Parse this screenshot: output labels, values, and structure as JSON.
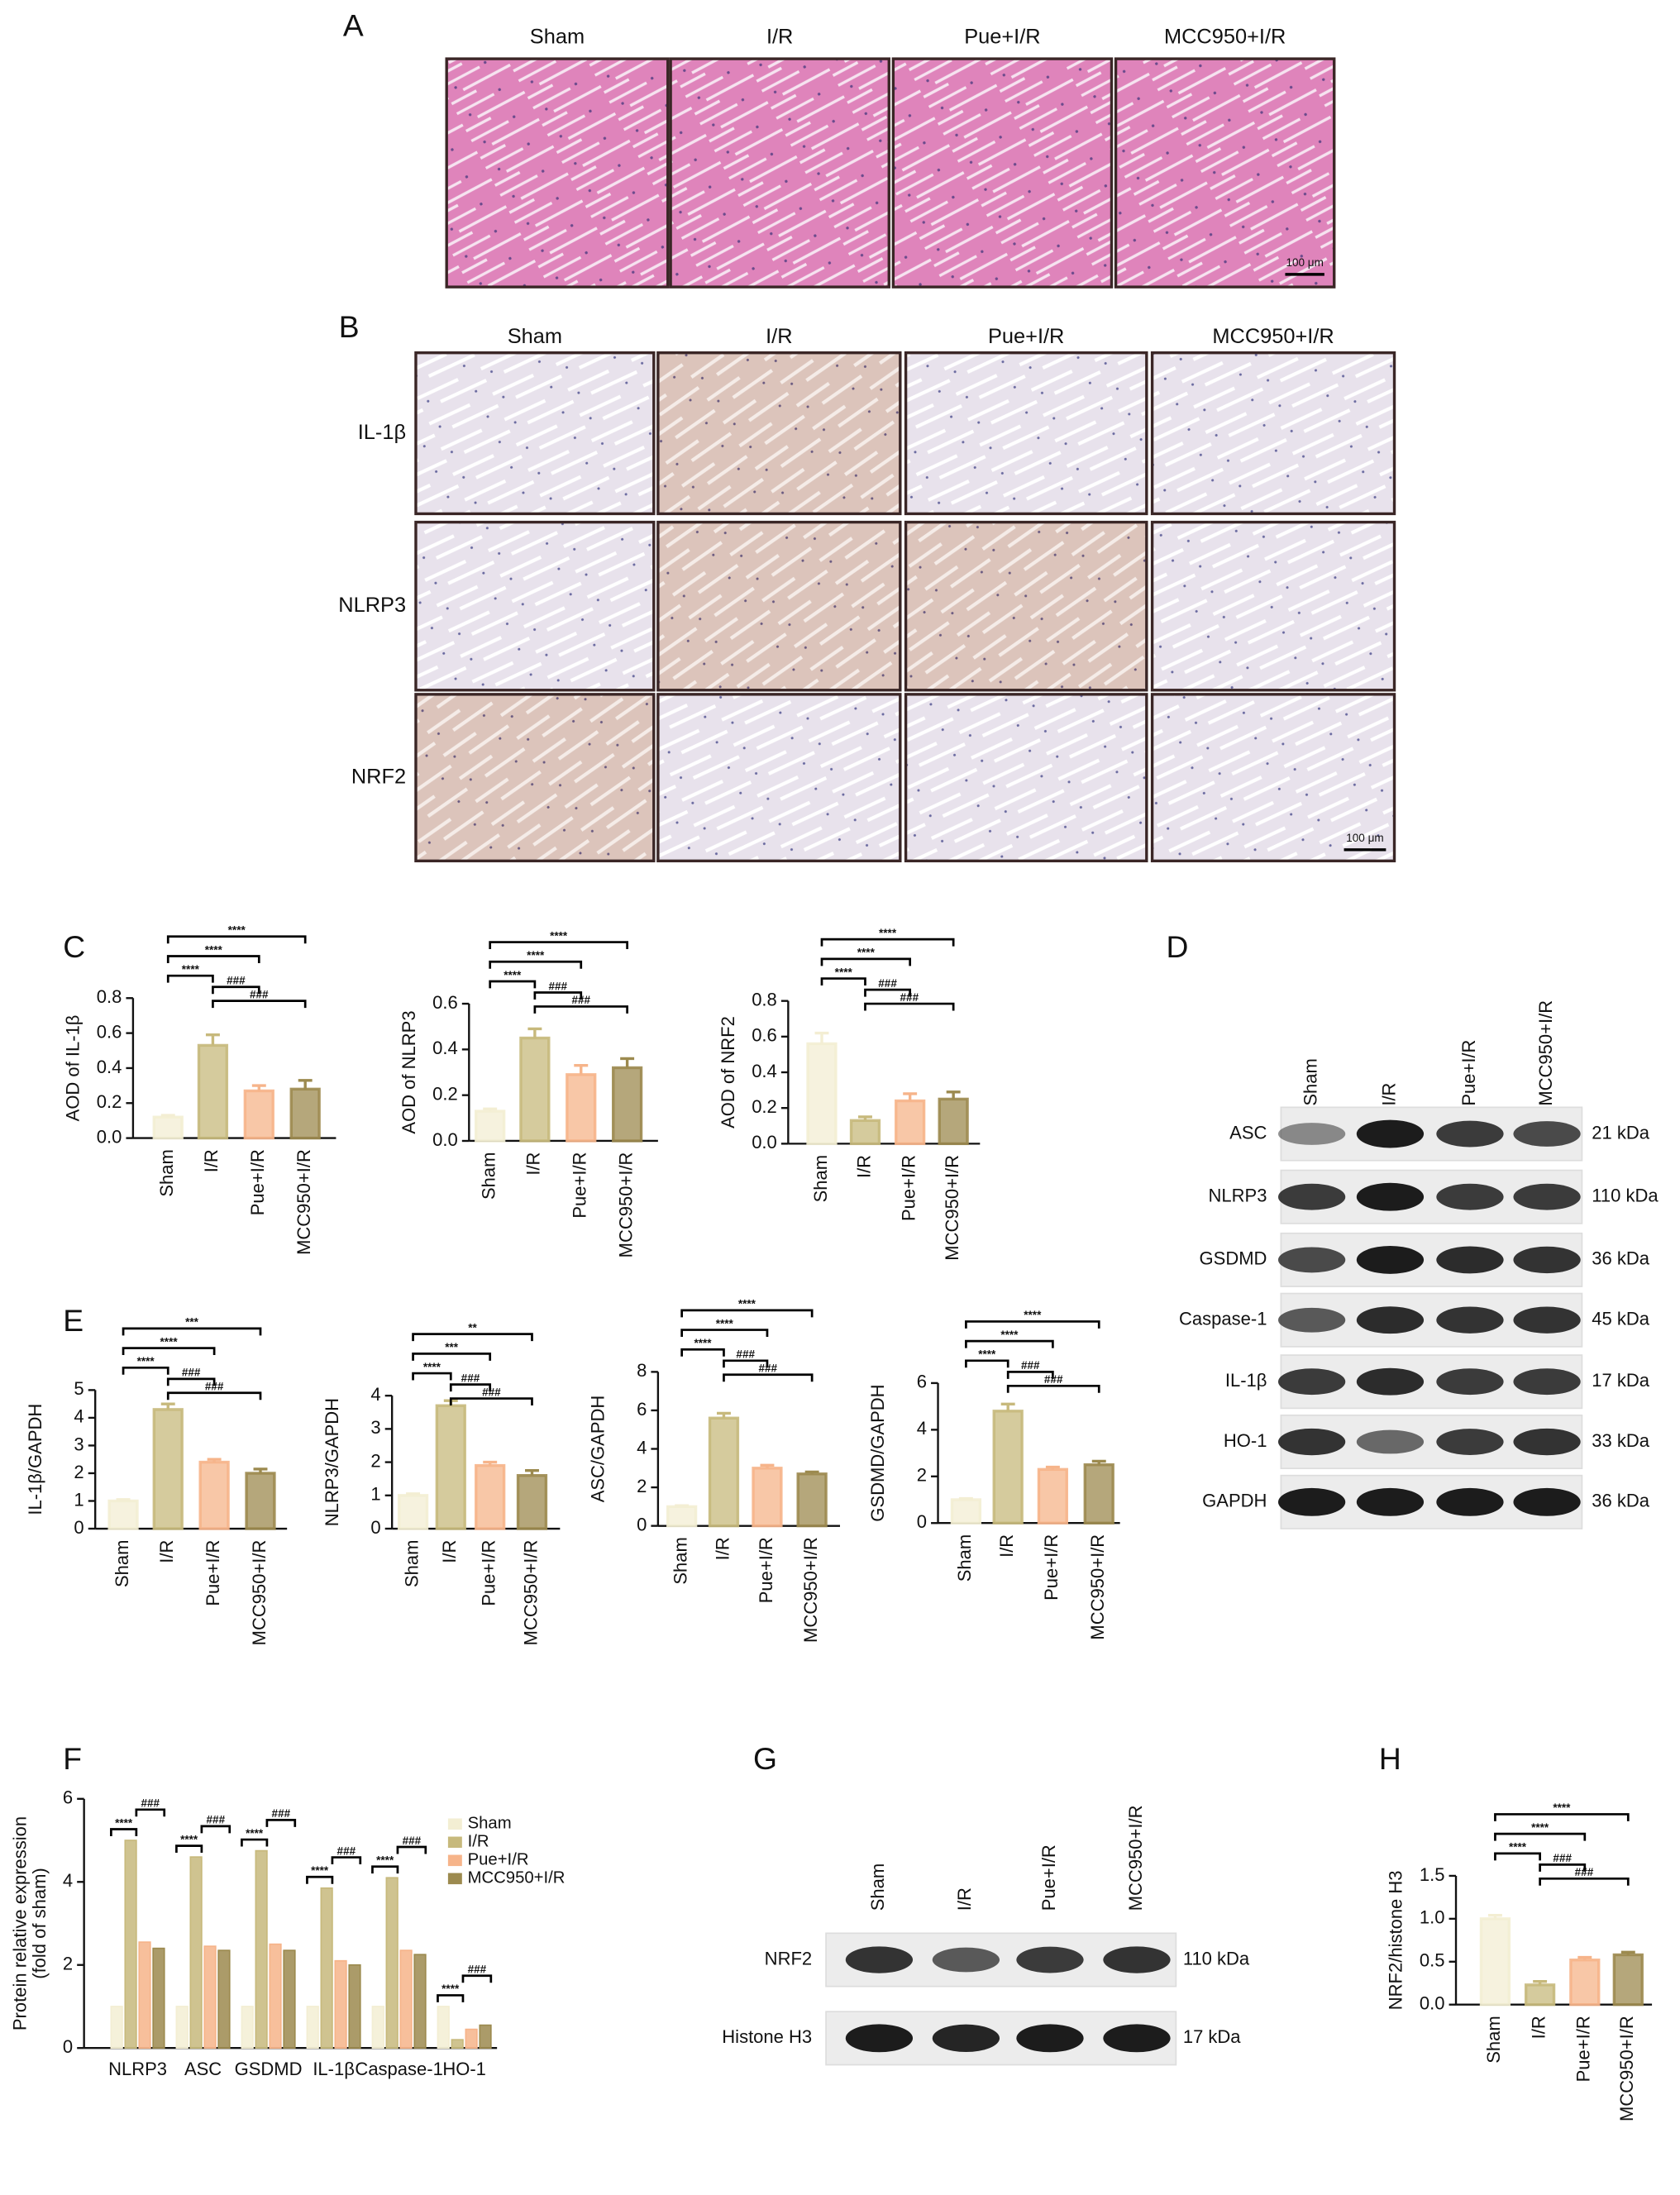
{
  "panel_labels": [
    "A",
    "B",
    "C",
    "D",
    "E",
    "F",
    "G",
    "H"
  ],
  "he_staining": {
    "groups": [
      "Sham",
      "I/R",
      "Pue+I/R",
      "MCC950+I/R"
    ],
    "scale_bar": "100 μm"
  },
  "ihc_staining": {
    "groups": [
      "Sham",
      "I/R",
      "Pue+I/R",
      "MCC950+I/R"
    ],
    "markers": [
      "IL-1β",
      "NLRP3",
      "NRF2"
    ],
    "scale_bar": "100 μm"
  },
  "western_blot_d": {
    "lanes": [
      "Sham",
      "I/R",
      "Pue+I/R",
      "MCC950+I/R"
    ],
    "proteins": [
      "ASC",
      "NLRP3",
      "GSDMD",
      "Caspase-1",
      "IL-1β",
      "HO-1",
      "GAPDH"
    ],
    "sizes": [
      "21 kDa",
      "110 kDa",
      "36 kDa",
      "45 kDa",
      "17 kDa",
      "33 kDa",
      "36 kDa"
    ]
  },
  "western_blot_g": {
    "lanes": [
      "Sham",
      "I/R",
      "Pue+I/R",
      "MCC950+I/R"
    ],
    "proteins": [
      "NRF2",
      "Histone H3"
    ],
    "sizes": [
      "110 kDa",
      "17 kDa"
    ]
  },
  "chart_data": [
    {
      "type": "bar",
      "ylabel": "AOD of IL-1β",
      "categories": [
        "Sham",
        "I/R",
        "Pue+I/R",
        "MCC950+I/R"
      ],
      "values": [
        0.12,
        0.53,
        0.27,
        0.28
      ],
      "errors": [
        0.01,
        0.06,
        0.03,
        0.05
      ],
      "colors": [
        "#f3eed3",
        "#c7b97c",
        "#f6b48a",
        "#9c8a4f"
      ],
      "ylim": [
        0,
        0.8
      ],
      "yticks": [
        {
          "value": 0,
          "label": "0.0"
        },
        {
          "value": 0.2,
          "label": "0.2"
        },
        {
          "value": 0.4,
          "label": "0.4"
        },
        {
          "value": 0.6,
          "label": "0.6"
        },
        {
          "value": 0.8,
          "label": "0.8"
        }
      ],
      "annotations": [
        "****",
        "****",
        "****",
        "###",
        "###"
      ]
    },
    {
      "type": "bar",
      "ylabel": "AOD of NLRP3",
      "categories": [
        "Sham",
        "I/R",
        "Pue+I/R",
        "MCC950+I/R"
      ],
      "values": [
        0.13,
        0.45,
        0.29,
        0.32
      ],
      "errors": [
        0.01,
        0.04,
        0.04,
        0.04
      ],
      "colors": [
        "#f3eed3",
        "#c7b97c",
        "#f6b48a",
        "#9c8a4f"
      ],
      "ylim": [
        0,
        0.6
      ],
      "yticks": [
        {
          "value": 0,
          "label": "0.0"
        },
        {
          "value": 0.2,
          "label": "0.2"
        },
        {
          "value": 0.4,
          "label": "0.4"
        },
        {
          "value": 0.6,
          "label": "0.6"
        }
      ],
      "annotations": [
        "****",
        "****",
        "****",
        "###",
        "###"
      ]
    },
    {
      "type": "bar",
      "ylabel": "AOD of NRF2",
      "categories": [
        "Sham",
        "I/R",
        "Pue+I/R",
        "MCC950+I/R"
      ],
      "values": [
        0.56,
        0.13,
        0.24,
        0.25
      ],
      "errors": [
        0.06,
        0.02,
        0.04,
        0.04
      ],
      "colors": [
        "#f3eed3",
        "#c7b97c",
        "#f6b48a",
        "#9c8a4f"
      ],
      "ylim": [
        0,
        0.8
      ],
      "yticks": [
        {
          "value": 0,
          "label": "0.0"
        },
        {
          "value": 0.2,
          "label": "0.2"
        },
        {
          "value": 0.4,
          "label": "0.4"
        },
        {
          "value": 0.6,
          "label": "0.6"
        },
        {
          "value": 0.8,
          "label": "0.8"
        }
      ],
      "annotations": [
        "****",
        "****",
        "****",
        "###",
        "###"
      ]
    },
    {
      "type": "bar",
      "ylabel": "IL-1β/GAPDH",
      "categories": [
        "Sham",
        "I/R",
        "Pue+I/R",
        "MCC950+I/R"
      ],
      "values": [
        1.0,
        4.3,
        2.4,
        2.0
      ],
      "errors": [
        0.05,
        0.2,
        0.1,
        0.15
      ],
      "colors": [
        "#f3eed3",
        "#c7b97c",
        "#f6b48a",
        "#9c8a4f"
      ],
      "ylim": [
        0,
        5
      ],
      "yticks": [
        0,
        1,
        2,
        3,
        4,
        5
      ],
      "annotations": [
        "****",
        "****",
        "***",
        "###",
        "###"
      ]
    },
    {
      "type": "bar",
      "ylabel": "NLRP3/GAPDH",
      "categories": [
        "Sham",
        "I/R",
        "Pue+I/R",
        "MCC950+I/R"
      ],
      "values": [
        1.0,
        3.7,
        1.9,
        1.6
      ],
      "errors": [
        0.05,
        0.15,
        0.1,
        0.15
      ],
      "colors": [
        "#f3eed3",
        "#c7b97c",
        "#f6b48a",
        "#9c8a4f"
      ],
      "ylim": [
        0,
        4
      ],
      "yticks": [
        0,
        1,
        2,
        3,
        4
      ],
      "annotations": [
        "****",
        "***",
        "**",
        "###",
        "###"
      ]
    },
    {
      "type": "bar",
      "ylabel": "ASC/GAPDH",
      "categories": [
        "Sham",
        "I/R",
        "Pue+I/R",
        "MCC950+I/R"
      ],
      "values": [
        1.0,
        5.6,
        3.0,
        2.7
      ],
      "errors": [
        0.05,
        0.25,
        0.15,
        0.1
      ],
      "colors": [
        "#f3eed3",
        "#c7b97c",
        "#f6b48a",
        "#9c8a4f"
      ],
      "ylim": [
        0,
        8
      ],
      "yticks": [
        0,
        2,
        4,
        6,
        8
      ],
      "annotations": [
        "****",
        "****",
        "****",
        "###",
        "###"
      ]
    },
    {
      "type": "bar",
      "ylabel": "GSDMD/GAPDH",
      "categories": [
        "Sham",
        "I/R",
        "Pue+I/R",
        "MCC950+I/R"
      ],
      "values": [
        1.0,
        4.8,
        2.3,
        2.5
      ],
      "errors": [
        0.05,
        0.3,
        0.1,
        0.15
      ],
      "colors": [
        "#f3eed3",
        "#c7b97c",
        "#f6b48a",
        "#9c8a4f"
      ],
      "ylim": [
        0,
        6
      ],
      "yticks": [
        0,
        2,
        4,
        6
      ],
      "annotations": [
        "****",
        "****",
        "****",
        "###",
        "###"
      ]
    },
    {
      "type": "grouped_bar",
      "ylabel": [
        "Protein relative expression",
        "(fold of sham)"
      ],
      "categories": [
        "NLRP3",
        "ASC",
        "GSDMD",
        "IL-1β",
        "Caspase-1",
        "HO-1"
      ],
      "series": [
        {
          "name": "Sham",
          "color": "#f3eed3",
          "values": [
            1,
            1,
            1,
            1,
            1,
            1
          ]
        },
        {
          "name": "I/R",
          "color": "#c7b97c",
          "values": [
            5.0,
            4.6,
            4.75,
            3.85,
            4.1,
            0.2
          ]
        },
        {
          "name": "Pue+I/R",
          "color": "#f6b48a",
          "values": [
            2.55,
            2.45,
            2.5,
            2.1,
            2.35,
            0.45
          ]
        },
        {
          "name": "MCC950+I/R",
          "color": "#9c8a4f",
          "values": [
            2.4,
            2.35,
            2.35,
            2.0,
            2.25,
            0.55
          ]
        }
      ],
      "ylim": [
        0,
        6
      ],
      "yticks": [
        0,
        2,
        4,
        6
      ],
      "legend": "upper right",
      "annotations": [
        [
          "****",
          "###"
        ],
        [
          "****",
          "###"
        ],
        [
          "****",
          "###"
        ],
        [
          "****",
          "###"
        ],
        [
          "****",
          "###"
        ],
        [
          "****",
          "###"
        ]
      ]
    },
    {
      "type": "bar",
      "ylabel": "NRF2/histone H3",
      "categories": [
        "Sham",
        "I/R",
        "Pue+I/R",
        "MCC950+I/R"
      ],
      "values": [
        1.0,
        0.23,
        0.52,
        0.58
      ],
      "errors": [
        0.04,
        0.04,
        0.03,
        0.03
      ],
      "colors": [
        "#f3eed3",
        "#c7b97c",
        "#f6b48a",
        "#9c8a4f"
      ],
      "ylim": [
        0,
        1.5
      ],
      "yticks": [
        {
          "value": 0,
          "label": "0.0"
        },
        {
          "value": 0.5,
          "label": "0.5"
        },
        {
          "value": 1.0,
          "label": "1.0"
        },
        {
          "value": 1.5,
          "label": "1.5"
        }
      ],
      "annotations": [
        "****",
        "****",
        "****",
        "###",
        "###"
      ]
    }
  ]
}
